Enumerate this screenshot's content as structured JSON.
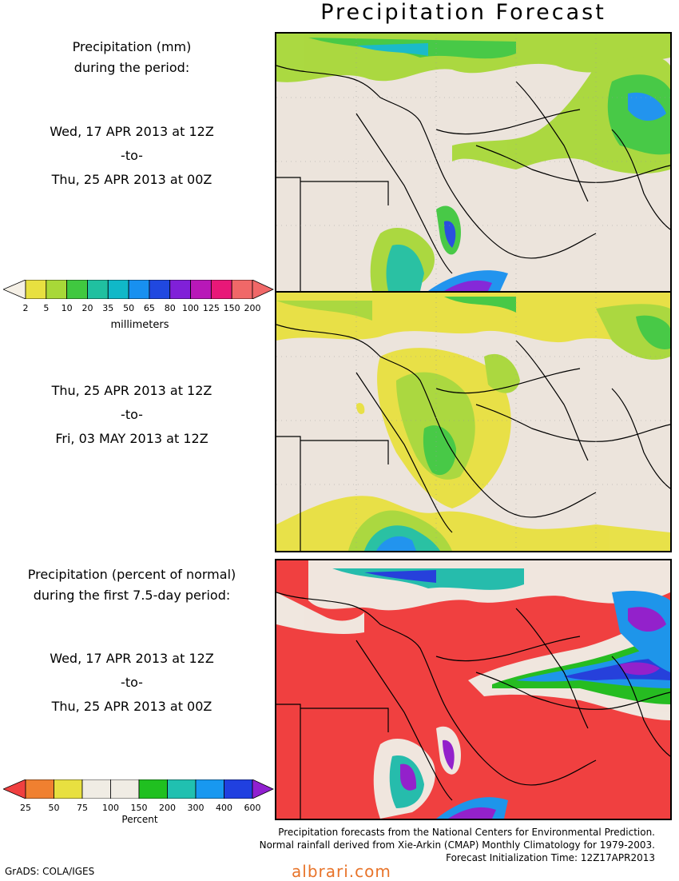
{
  "title": "Precipitation Forecast",
  "panel1": {
    "heading_line1": "Precipitation (mm)",
    "heading_line2": "during the period:",
    "start": "Wed, 17 APR 2013 at 12Z",
    "to": "-to-",
    "end": "Thu, 25 APR 2013 at 00Z"
  },
  "panel2": {
    "start": "Thu, 25 APR 2013 at 12Z",
    "to": "-to-",
    "end": "Fri, 03 MAY 2013 at 12Z"
  },
  "panel3": {
    "heading_line1": "Precipitation (percent of normal)",
    "heading_line2": "during the first 7.5-day period:",
    "start": "Wed, 17 APR 2013 at 12Z",
    "to": "-to-",
    "end": "Thu, 25 APR 2013 at 00Z"
  },
  "legend_mm": {
    "ticks": [
      "2",
      "5",
      "10",
      "20",
      "35",
      "50",
      "65",
      "80",
      "100",
      "125",
      "150",
      "200"
    ],
    "colors": [
      "#f5f0e6",
      "#e8e040",
      "#a8d838",
      "#40c840",
      "#20c0a0",
      "#10b8c8",
      "#1890f0",
      "#2048e0",
      "#8020d8",
      "#b818b8",
      "#e81878",
      "#f06868",
      "#f06868"
    ],
    "unit": "millimeters"
  },
  "legend_pct": {
    "ticks": [
      "25",
      "50",
      "75",
      "100",
      "150",
      "200",
      "300",
      "400",
      "600"
    ],
    "colors": [
      "#f04040",
      "#f08030",
      "#e8e040",
      "#f0ece4",
      "#f0ece4",
      "#20c020",
      "#20c0b0",
      "#1898f0",
      "#2040e0",
      "#9020d0"
    ],
    "unit": "Percent"
  },
  "footer": {
    "line1": "Precipitation forecasts from the National Centers for Environmental Prediction.",
    "line2": "Normal rainfall derived from Xie-Arkin (CMAP) Monthly Climatology for 1979-2003.",
    "line3": "Forecast Initialization Time: 12Z17APR2013"
  },
  "credit": "GrADS: COLA/IGES",
  "watermark": "albrari.com"
}
